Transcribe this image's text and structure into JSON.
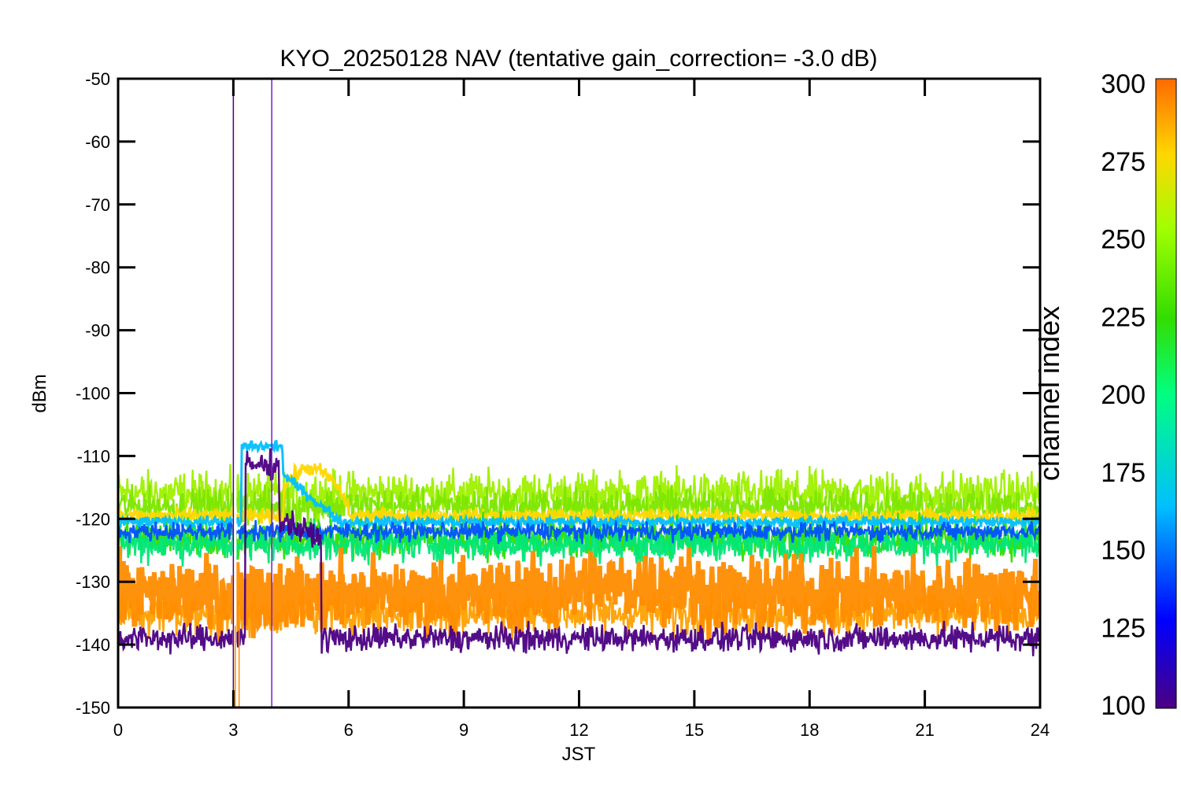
{
  "chart_data": {
    "type": "line",
    "title": "KYO_20250128 NAV (tentative gain_correction= -3.0 dB)",
    "xlabel": "JST",
    "ylabel": "dBm",
    "xlim": [
      0,
      24
    ],
    "ylim": [
      -150,
      -50
    ],
    "x_ticks": [
      "0",
      "3",
      "6",
      "9",
      "12",
      "15",
      "18",
      "21",
      "24"
    ],
    "y_ticks": [
      "-50",
      "-60",
      "-70",
      "-80",
      "-90",
      "-100",
      "-110",
      "-120",
      "-130",
      "-140",
      "-150"
    ],
    "grid": false,
    "colorbar": {
      "label": "channel index",
      "range": [
        100,
        300
      ],
      "ticks": [
        "300",
        "275",
        "250",
        "225",
        "200",
        "175",
        "150",
        "125",
        "100"
      ],
      "colormap": [
        "#4b0082",
        "#0000ff",
        "#00bfff",
        "#00ff80",
        "#33dd00",
        "#a0ff00",
        "#ffd700",
        "#ff8c00"
      ]
    },
    "series": [
      {
        "channel": 250,
        "color": "#9ef000",
        "mean": -116,
        "spread": 2.5
      },
      {
        "channel": 240,
        "color": "#7ce600",
        "mean": -118,
        "spread": 2.0
      },
      {
        "channel": 270,
        "color": "#ffd700",
        "mean": -119.5,
        "spread": 0.8
      },
      {
        "channel": 225,
        "color": "#33dd00",
        "mean": -123,
        "spread": 2.2
      },
      {
        "channel": 215,
        "color": "#00e676",
        "mean": -124,
        "spread": 2.0
      },
      {
        "channel": 170,
        "color": "#00bfff",
        "mean": -120.5,
        "spread": 0.6
      },
      {
        "channel": 150,
        "color": "#0050ff",
        "mean": -122,
        "spread": 1.0
      },
      {
        "channel": 285,
        "color": "#ffa000",
        "mean": -135,
        "spread": 2.5
      },
      {
        "channel": 300,
        "color": "#ff8c00",
        "mean": -132,
        "spread": 4.0
      },
      {
        "channel": 110,
        "color": "#4b0082",
        "mean": -139,
        "spread": 1.5
      }
    ],
    "spikes": [
      {
        "x": 3.0,
        "color": "#4b0082",
        "from": -150,
        "to": -52
      },
      {
        "x": 4.0,
        "color": "#7a20c0",
        "from": -150,
        "to": -50
      },
      {
        "x": 3.05,
        "color": "#ff8c00",
        "from": -150,
        "to": -137
      },
      {
        "x": 3.15,
        "color": "#ff8c00",
        "from": -150,
        "to": -137
      }
    ],
    "event": {
      "description_series": "rise between 3 and 6 JST",
      "cyan_bump_x": [
        3.2,
        4.3
      ],
      "cyan_bump_y": -108.5,
      "yellow_bump_x": [
        4.3,
        6.0
      ],
      "yellow_bump_y": -112
    }
  }
}
